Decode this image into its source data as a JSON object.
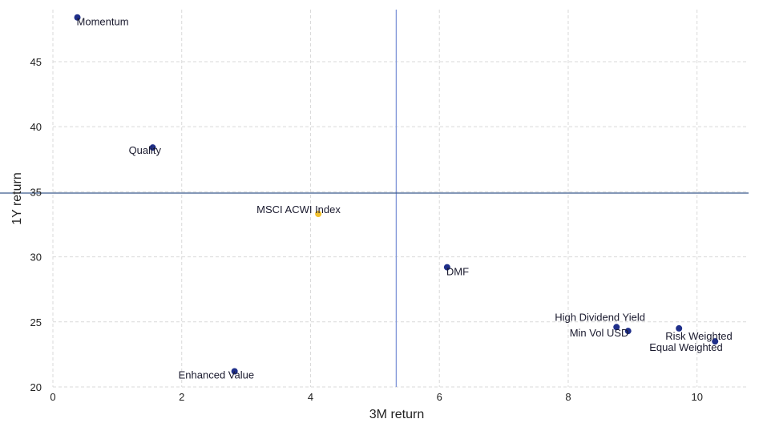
{
  "chart_data": {
    "type": "scatter",
    "title": "",
    "xlabel": "3M return",
    "ylabel": "1Y return",
    "xlim": [
      0,
      10.8
    ],
    "ylim": [
      20,
      49
    ],
    "xticks": [
      0,
      2,
      4,
      6,
      8,
      10
    ],
    "yticks": [
      20,
      25,
      30,
      35,
      40,
      45
    ],
    "grid": true,
    "reference_lines": {
      "x": 5.33,
      "y": 34.9
    },
    "colors": {
      "point": "#1f2f8a",
      "highlight": "#f2c12e",
      "hline": "#3a5a8c",
      "vline": "#7f95d8"
    },
    "points": [
      {
        "label": "Momentum",
        "x": 0.38,
        "y": 48.4,
        "highlight": false
      },
      {
        "label": "Quality",
        "x": 1.55,
        "y": 38.4,
        "highlight": false
      },
      {
        "label": "MSCI ACWI Index",
        "x": 4.12,
        "y": 33.3,
        "highlight": true
      },
      {
        "label": "DMF",
        "x": 6.12,
        "y": 29.2,
        "highlight": false
      },
      {
        "label": "Enhanced Value",
        "x": 2.82,
        "y": 21.2,
        "highlight": false
      },
      {
        "label": "High Dividend Yield",
        "x": 8.75,
        "y": 24.6,
        "highlight": false
      },
      {
        "label": "Min Vol USD",
        "x": 8.93,
        "y": 24.3,
        "highlight": false
      },
      {
        "label": "Risk Weighted",
        "x": 9.72,
        "y": 24.5,
        "highlight": false
      },
      {
        "label": "Equal Weighted",
        "x": 10.28,
        "y": 23.5,
        "highlight": false
      }
    ]
  }
}
